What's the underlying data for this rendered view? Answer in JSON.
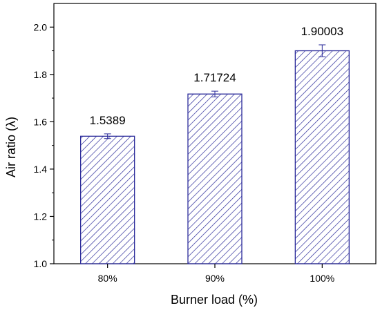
{
  "chart_data": {
    "type": "bar",
    "categories": [
      "80%",
      "90%",
      "100%"
    ],
    "values": [
      1.5389,
      1.71724,
      1.90003
    ],
    "data_labels": [
      "1.5389",
      "1.71724",
      "1.90003"
    ],
    "error": [
      0.01,
      0.012,
      0.025
    ],
    "xlabel": "Burner load (%)",
    "ylabel": "Air ratio (λ)",
    "ylim": [
      1.0,
      2.1
    ],
    "yticks": [
      "1.0",
      "1.2",
      "1.4",
      "1.6",
      "1.8",
      "2.0"
    ],
    "grid": false,
    "fill_pattern": "diagonal-hatch",
    "colors": {
      "bar_stroke": "#2b2b9a",
      "hatch": "#2b2b9a",
      "error_bar": "#2b2b9a",
      "axis": "#000000"
    }
  }
}
